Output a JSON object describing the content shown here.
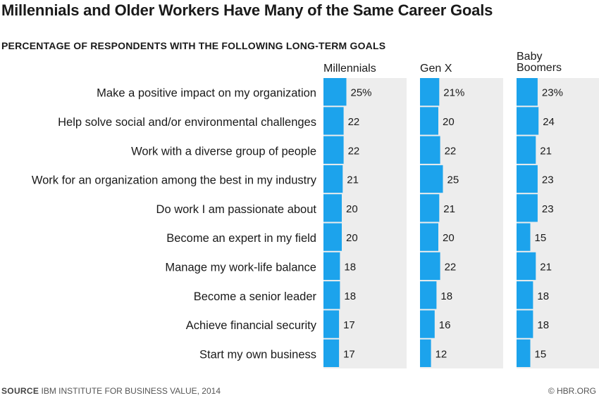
{
  "title": "Millennials and Older Workers Have Many of the Same Career Goals",
  "subtitle": "PERCENTAGE OF RESPONDENTS WITH THE FOLLOWING LONG-TERM GOALS",
  "footer": {
    "source_label": "SOURCE",
    "source_text": "IBM INSTITUTE FOR BUSINESS VALUE, 2014",
    "credit": "© HBR.ORG"
  },
  "colors": {
    "bar": "#1ca3ec",
    "panel": "#ededed",
    "text": "#1a1a1a"
  },
  "chart_data": {
    "type": "bar",
    "orientation": "horizontal",
    "value_unit": "%",
    "categories": [
      "Make a positive impact on my organization",
      "Help solve social and/or environmental challenges",
      "Work with a diverse group of people",
      "Work for an organization among the best in my industry",
      "Do work I am passionate about",
      "Become an expert in my field",
      "Manage my work-life balance",
      "Become a senior leader",
      "Achieve financial security",
      "Start my own business"
    ],
    "series": [
      {
        "name": "Millennials",
        "values": [
          25,
          22,
          22,
          21,
          20,
          20,
          18,
          18,
          17,
          17
        ],
        "labels": [
          "25%",
          "22",
          "22",
          "21",
          "20",
          "20",
          "18",
          "18",
          "17",
          "17"
        ]
      },
      {
        "name": "Gen X",
        "values": [
          21,
          20,
          22,
          25,
          21,
          20,
          22,
          18,
          16,
          12
        ],
        "labels": [
          "21%",
          "20",
          "22",
          "25",
          "21",
          "20",
          "22",
          "18",
          "16",
          "12"
        ]
      },
      {
        "name": "Baby\nBoomers",
        "values": [
          23,
          24,
          21,
          23,
          23,
          15,
          21,
          18,
          18,
          15
        ],
        "labels": [
          "23%",
          "24",
          "21",
          "23",
          "23",
          "15",
          "21",
          "18",
          "18",
          "15"
        ]
      }
    ]
  }
}
